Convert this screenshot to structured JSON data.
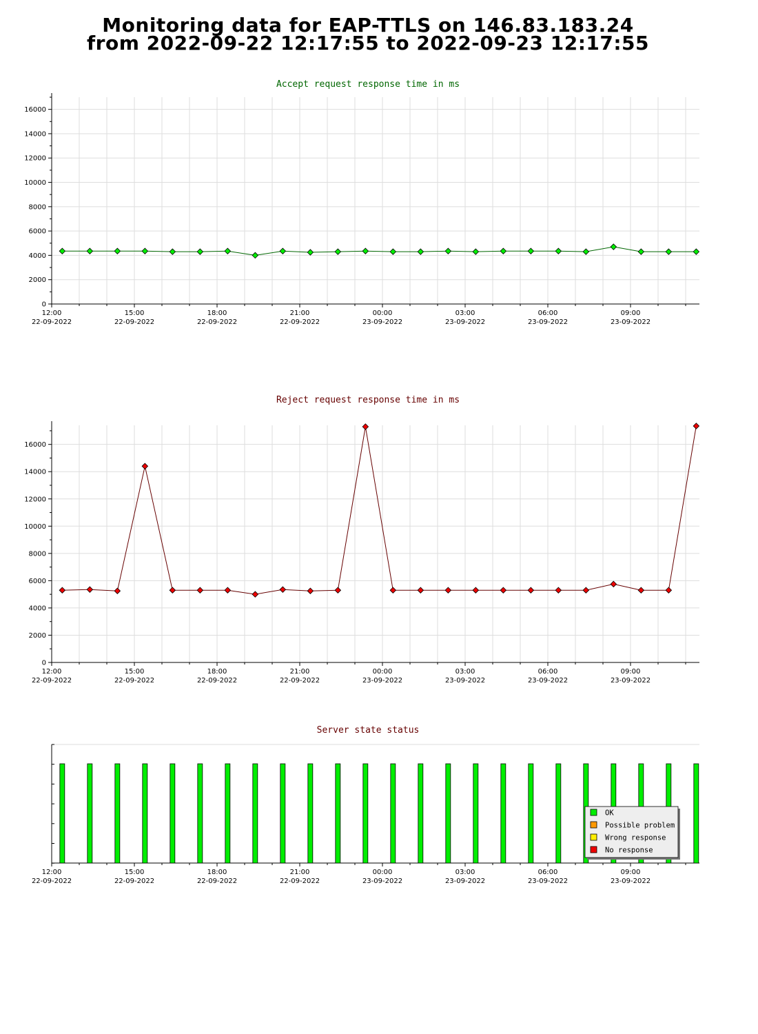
{
  "page": {
    "title_line1": "Monitoring data for EAP-TTLS on 146.83.183.24",
    "title_line2": "from 2022-09-22 12:17:55 to 2022-09-23 12:17:55"
  },
  "colors": {
    "accept_title": "#006600",
    "reject_title": "#660000",
    "status_title": "#660000",
    "accept_line": "#006600",
    "accept_marker": "#00ee00",
    "reject_line": "#660000",
    "reject_marker": "#ee0000",
    "grid": "#dddddd",
    "ok": "#00ee00",
    "possible_problem": "#ff9900",
    "wrong_response": "#ffee00",
    "no_response": "#ee0000"
  },
  "chart_data": [
    {
      "id": "accept",
      "type": "line",
      "title": "Accept request response time in ms",
      "y_ticks": [
        "0",
        "2000",
        "4000",
        "6000",
        "8000",
        "10000",
        "12000",
        "14000",
        "16000"
      ],
      "ylim": [
        0,
        17000
      ],
      "x_range_hours": [
        0,
        23.5
      ],
      "x_tick_hours": [
        "12:00",
        "15:00",
        "18:00",
        "21:00",
        "00:00",
        "03:00",
        "06:00",
        "09:00"
      ],
      "x_tick_dates": [
        "22-09-2022",
        "22-09-2022",
        "22-09-2022",
        "22-09-2022",
        "23-09-2022",
        "23-09-2022",
        "23-09-2022",
        "23-09-2022"
      ],
      "x": [
        "12:23",
        "13:23",
        "14:23",
        "15:23",
        "16:23",
        "17:23",
        "18:23",
        "19:23",
        "20:23",
        "21:23",
        "22:23",
        "23:23",
        "00:23",
        "01:23",
        "02:23",
        "03:23",
        "04:23",
        "05:23",
        "06:23",
        "07:23",
        "08:23",
        "09:23",
        "10:23",
        "11:23"
      ],
      "values": [
        4350,
        4350,
        4350,
        4350,
        4300,
        4300,
        4350,
        4000,
        4350,
        4250,
        4300,
        4350,
        4300,
        4300,
        4350,
        4300,
        4350,
        4350,
        4350,
        4300,
        4700,
        4300,
        4300,
        4300
      ],
      "grid": true
    },
    {
      "id": "reject",
      "type": "line",
      "title": "Reject request response time in ms",
      "y_ticks": [
        "0",
        "2000",
        "4000",
        "6000",
        "8000",
        "10000",
        "12000",
        "14000",
        "16000"
      ],
      "ylim": [
        0,
        17400
      ],
      "x_tick_hours": [
        "12:00",
        "15:00",
        "18:00",
        "21:00",
        "00:00",
        "03:00",
        "06:00",
        "09:00"
      ],
      "x_tick_dates": [
        "22-09-2022",
        "22-09-2022",
        "22-09-2022",
        "22-09-2022",
        "23-09-2022",
        "23-09-2022",
        "23-09-2022",
        "23-09-2022"
      ],
      "x": [
        "12:23",
        "13:23",
        "14:23",
        "15:23",
        "16:23",
        "17:23",
        "18:23",
        "19:23",
        "20:23",
        "21:23",
        "22:23",
        "23:23",
        "00:23",
        "01:23",
        "02:23",
        "03:23",
        "04:23",
        "05:23",
        "06:23",
        "07:23",
        "08:23",
        "09:23",
        "10:23",
        "11:23"
      ],
      "values": [
        5300,
        5350,
        5250,
        14400,
        5300,
        5300,
        5300,
        5000,
        5350,
        5250,
        5300,
        17300,
        5300,
        5300,
        5300,
        5300,
        5300,
        5300,
        5300,
        5300,
        5750,
        5300,
        5300,
        17350
      ],
      "grid": true
    },
    {
      "id": "status",
      "type": "bar",
      "title": "Server state status",
      "x_tick_hours": [
        "12:00",
        "15:00",
        "18:00",
        "21:00",
        "00:00",
        "03:00",
        "06:00",
        "09:00"
      ],
      "x_tick_dates": [
        "22-09-2022",
        "22-09-2022",
        "22-09-2022",
        "22-09-2022",
        "23-09-2022",
        "23-09-2022",
        "23-09-2022",
        "23-09-2022"
      ],
      "x": [
        "12:23",
        "13:23",
        "14:23",
        "15:23",
        "16:23",
        "17:23",
        "18:23",
        "19:23",
        "20:23",
        "21:23",
        "22:23",
        "23:23",
        "00:23",
        "01:23",
        "02:23",
        "03:23",
        "04:23",
        "05:23",
        "06:23",
        "07:23",
        "08:23",
        "09:23",
        "10:23",
        "11:23"
      ],
      "values": [
        "OK",
        "OK",
        "OK",
        "OK",
        "OK",
        "OK",
        "OK",
        "OK",
        "OK",
        "OK",
        "OK",
        "OK",
        "OK",
        "OK",
        "OK",
        "OK",
        "OK",
        "OK",
        "OK",
        "OK",
        "OK",
        "OK",
        "OK",
        "OK"
      ],
      "legend": [
        "OK",
        "Possible problem",
        "Wrong response",
        "No response"
      ],
      "legend_position": "bottom-right",
      "grid": false
    }
  ]
}
